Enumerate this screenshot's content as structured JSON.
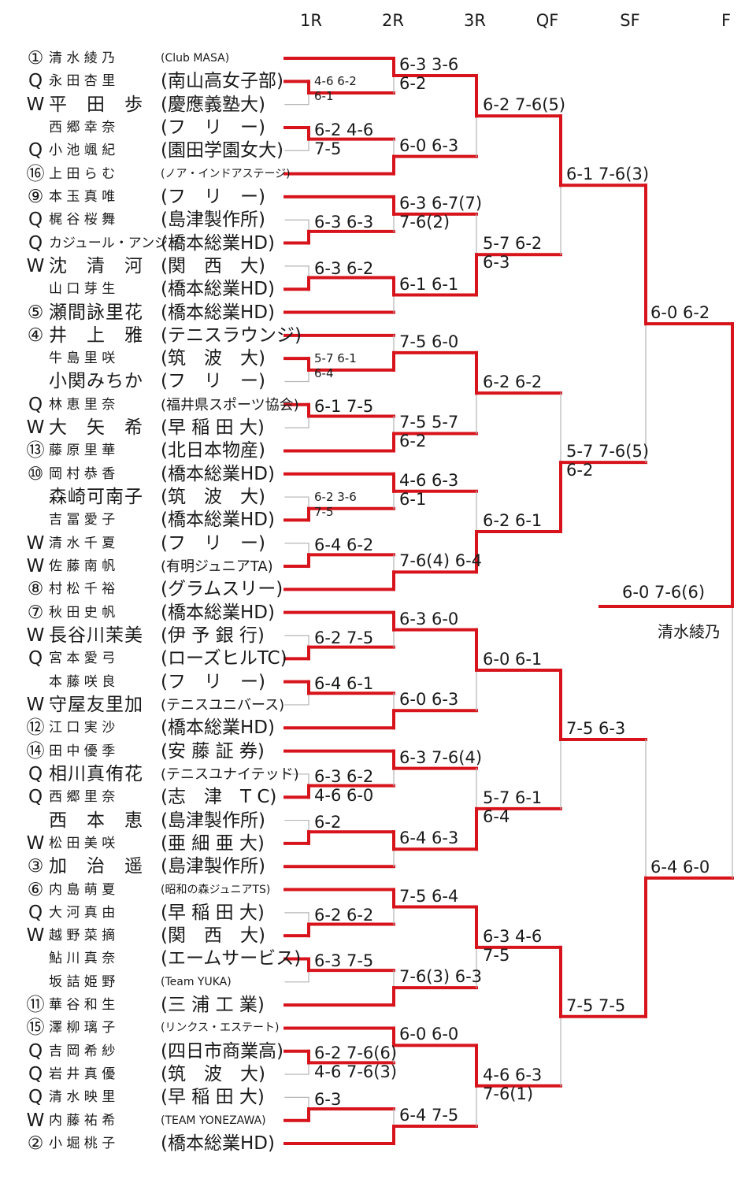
{
  "rounds": [
    "1R",
    "2R",
    "3R",
    "QF",
    "SF",
    "F"
  ],
  "colors": {
    "win": "#d7141c",
    "lose": "#b5b5b5",
    "text": "#1a1a1a"
  },
  "players": [
    {
      "seed": "①",
      "name": "清 水 綾 乃",
      "club": "(Club  MASA)"
    },
    {
      "seed": "Q",
      "name": "永 田 杏 里",
      "club": "(南山高女子部)"
    },
    {
      "seed": "W",
      "name": "平　田　歩",
      "club": "(慶應義塾大)"
    },
    {
      "seed": "",
      "name": "西 郷 幸 奈",
      "club": "(フ　リ　ー)"
    },
    {
      "seed": "Q",
      "name": "小 池 颯 紀",
      "club": "(園田学園女大)"
    },
    {
      "seed": "⑯",
      "name": "上 田 ら む",
      "club": "(ノア・インドアステージ)"
    },
    {
      "seed": "⑨",
      "name": "本 玉 真 唯",
      "club": "(フ　リ　ー)"
    },
    {
      "seed": "Q",
      "name": "梶 谷 桜 舞",
      "club": "(島津製作所)"
    },
    {
      "seed": "Q",
      "name": "カジュール・アンジュ",
      "club": "(橋本総業HD)"
    },
    {
      "seed": "W",
      "name": "沈　清　河",
      "club": "(関　西　大)"
    },
    {
      "seed": "",
      "name": "山 口 芽 生",
      "club": "(橋本総業HD)"
    },
    {
      "seed": "⑤",
      "name": "瀬間詠里花",
      "club": "(橋本総業HD)"
    },
    {
      "seed": "④",
      "name": "井　上　雅",
      "club": "(テニスラウンジ)"
    },
    {
      "seed": "",
      "name": "牛 島 里 咲",
      "club": "(筑　波　大)"
    },
    {
      "seed": "",
      "name": "小関みちか",
      "club": "(フ　リ　ー)"
    },
    {
      "seed": "Q",
      "name": "林 恵 里 奈",
      "club": "(福井県スポーツ協会)"
    },
    {
      "seed": "W",
      "name": "大　矢　希",
      "club": "(早 稲 田 大)"
    },
    {
      "seed": "⑬",
      "name": "藤 原 里 華",
      "club": "(北日本物産)"
    },
    {
      "seed": "⑩",
      "name": "岡 村 恭 香",
      "club": "(橋本総業HD)"
    },
    {
      "seed": "",
      "name": "森崎可南子",
      "club": "(筑　波　大)"
    },
    {
      "seed": "",
      "name": "吉 冨 愛 子",
      "club": "(橋本総業HD)"
    },
    {
      "seed": "W",
      "name": "清 水 千 夏",
      "club": "(フ　リ　ー)"
    },
    {
      "seed": "W",
      "name": "佐 藤 南 帆",
      "club": "(有明ジュニアTA)"
    },
    {
      "seed": "⑧",
      "name": "村 松 千 裕",
      "club": "(グラムスリー)"
    },
    {
      "seed": "⑦",
      "name": "秋 田 史 帆",
      "club": "(橋本総業HD)"
    },
    {
      "seed": "W",
      "name": "長谷川茉美",
      "club": "(伊 予 銀 行)"
    },
    {
      "seed": "Q",
      "name": "宮 本 愛 弓",
      "club": "(ローズヒルTC)"
    },
    {
      "seed": "",
      "name": "本 藤 咲 良",
      "club": "(フ　リ　ー)"
    },
    {
      "seed": "W",
      "name": "守屋友里加",
      "club": "(テニスユニバース)"
    },
    {
      "seed": "⑫",
      "name": "江 口 実 沙",
      "club": "(橋本総業HD)"
    },
    {
      "seed": "⑭",
      "name": "田 中 優 季",
      "club": "(安 藤 証 券)"
    },
    {
      "seed": "Q",
      "name": "相川真侑花",
      "club": "(テニスユナイテッド)"
    },
    {
      "seed": "Q",
      "name": "西 郷 里 奈",
      "club": "(志　津　T C)"
    },
    {
      "seed": "",
      "name": "西　本　恵",
      "club": "(島津製作所)"
    },
    {
      "seed": "W",
      "name": "松 田 美 咲",
      "club": "(亜 細 亜 大)"
    },
    {
      "seed": "③",
      "name": "加　治　遥",
      "club": "(島津製作所)"
    },
    {
      "seed": "⑥",
      "name": "内 島 萌 夏",
      "club": "(昭和の森ジュニアTS)"
    },
    {
      "seed": "Q",
      "name": "大 河 真 由",
      "club": "(早 稲 田 大)"
    },
    {
      "seed": "W",
      "name": "越 野 菜 摘",
      "club": "(関　西　大)"
    },
    {
      "seed": "",
      "name": "鮎 川 真 奈",
      "club": "(エームサービス)"
    },
    {
      "seed": "",
      "name": "坂 詰 姫 野",
      "club": "(Team  YUKA)"
    },
    {
      "seed": "⑪",
      "name": "華 谷 和 生",
      "club": "(三 浦 工 業)"
    },
    {
      "seed": "⑮",
      "name": "澤 柳 璃 子",
      "club": "(リンクス・エステート)"
    },
    {
      "seed": "Q",
      "name": "吉 岡 希 紗",
      "club": "(四日市商業高)"
    },
    {
      "seed": "Q",
      "name": "岩 井 真 優",
      "club": "(筑　波　大)"
    },
    {
      "seed": "Q",
      "name": "清 水 映 里",
      "club": "(早 稲 田 大)"
    },
    {
      "seed": "W",
      "name": "内 藤 祐 希",
      "club": "(TEAM YONEZAWA)"
    },
    {
      "seed": "②",
      "name": "小 堀 桃 子",
      "club": "(橋本総業HD)"
    }
  ],
  "r1": [
    {
      "a": 1,
      "b": 2,
      "w": 1,
      "score": [
        "4-6 6-2",
        "6-1"
      ],
      "small": true
    },
    {
      "a": 3,
      "b": 4,
      "w": 3,
      "score": [
        "6-2 4-6",
        "7-5"
      ]
    },
    {
      "a": 7,
      "b": 8,
      "w": 8,
      "score": [
        "6-3 6-3"
      ]
    },
    {
      "a": 9,
      "b": 10,
      "w": 10,
      "score": [
        "6-3 6-2"
      ]
    },
    {
      "a": 13,
      "b": 14,
      "w": 13,
      "score": [
        "5-7 6-1",
        "6-4"
      ],
      "small": true
    },
    {
      "a": 15,
      "b": 16,
      "w": 15,
      "score": [
        "6-1 7-5"
      ]
    },
    {
      "a": 19,
      "b": 20,
      "w": 20,
      "score": [
        "6-2 3-6",
        "7-5"
      ],
      "small": true
    },
    {
      "a": 21,
      "b": 22,
      "w": 22,
      "score": [
        "6-4 6-2"
      ]
    },
    {
      "a": 25,
      "b": 26,
      "w": 26,
      "score": [
        "6-2 7-5"
      ]
    },
    {
      "a": 27,
      "b": 28,
      "w": 27,
      "score": [
        "6-4 6-1"
      ]
    },
    {
      "a": 31,
      "b": 32,
      "w": 32,
      "score": [
        "6-3 6-2",
        "4-6 6-0"
      ]
    },
    {
      "a": 33,
      "b": 34,
      "w": 34,
      "score": [
        "6-2"
      ]
    },
    {
      "a": 37,
      "b": 38,
      "w": 38,
      "score": [
        "6-2 6-2"
      ]
    },
    {
      "a": 39,
      "b": 40,
      "w": 39,
      "score": [
        "6-3 7-5"
      ]
    },
    {
      "a": 43,
      "b": 44,
      "w": 43,
      "score": [
        "6-2 7-6(6)",
        "4-6 7-6(3)"
      ]
    },
    {
      "a": 45,
      "b": 46,
      "w": 46,
      "score": [
        "6-3"
      ]
    }
  ],
  "r2": [
    {
      "a": 0,
      "b": 1,
      "w": 0,
      "score": [
        "6-3 3-6",
        "6-2"
      ]
    },
    {
      "a": 3,
      "b": 5,
      "w": 5,
      "score": [
        "6-0 6-3"
      ]
    },
    {
      "a": 6,
      "b": 8,
      "w": 6,
      "score": [
        "6-3 6-7(7)",
        "7-6(2)"
      ]
    },
    {
      "a": 10,
      "b": 11,
      "w": 10,
      "score": [
        "6-1 6-1"
      ]
    },
    {
      "a": 12,
      "b": 13,
      "w": 13,
      "score": [
        "7-5 6-0"
      ]
    },
    {
      "a": 15,
      "b": 17,
      "w": 17,
      "score": [
        "7-5 5-7",
        "6-2"
      ]
    },
    {
      "a": 18,
      "b": 20,
      "w": 18,
      "score": [
        "4-6 6-3",
        "6-1"
      ]
    },
    {
      "a": 22,
      "b": 23,
      "w": 23,
      "score": [
        "7-6(4) 6-4"
      ]
    },
    {
      "a": 24,
      "b": 26,
      "w": 24,
      "score": [
        "6-3 6-0"
      ]
    },
    {
      "a": 27,
      "b": 29,
      "w": 29,
      "score": [
        "6-0 6-3"
      ]
    },
    {
      "a": 30,
      "b": 32,
      "w": 30,
      "score": [
        "6-3 7-6(4)"
      ]
    },
    {
      "a": 34,
      "b": 35,
      "w": 34,
      "score": [
        "6-4 6-3"
      ]
    },
    {
      "a": 36,
      "b": 38,
      "w": 36,
      "score": [
        "7-5 6-4"
      ]
    },
    {
      "a": 39,
      "b": 41,
      "w": 41,
      "score": [
        "7-6(3) 6-3"
      ]
    },
    {
      "a": 42,
      "b": 43,
      "w": 42,
      "score": [
        "6-0 6-0"
      ]
    },
    {
      "a": 46,
      "b": 47,
      "w": 47,
      "score": [
        "6-4 7-5"
      ]
    }
  ],
  "r3": [
    {
      "a": 0,
      "b": 5,
      "w": 0,
      "score": [
        "6-2 7-6(5)"
      ]
    },
    {
      "a": 6,
      "b": 10,
      "w": 10,
      "score": [
        "5-7 6-2",
        "6-3"
      ]
    },
    {
      "a": 13,
      "b": 17,
      "w": 13,
      "score": [
        "6-2 6-2"
      ]
    },
    {
      "a": 18,
      "b": 23,
      "w": 23,
      "score": [
        "6-2 6-1"
      ]
    },
    {
      "a": 24,
      "b": 29,
      "w": 24,
      "score": [
        "6-0 6-1"
      ]
    },
    {
      "a": 30,
      "b": 34,
      "w": 34,
      "score": [
        "5-7 6-1",
        "6-4"
      ]
    },
    {
      "a": 36,
      "b": 41,
      "w": 36,
      "score": [
        "6-3 4-6",
        "7-5"
      ]
    },
    {
      "a": 42,
      "b": 47,
      "w": 42,
      "score": [
        "4-6 6-3",
        "7-6(1)"
      ]
    }
  ],
  "qf": [
    {
      "a": 0,
      "b": 10,
      "w": 0,
      "score": [
        "6-1 7-6(3)"
      ]
    },
    {
      "a": 13,
      "b": 23,
      "w": 23,
      "score": [
        "5-7 7-6(5)",
        "6-2"
      ]
    },
    {
      "a": 24,
      "b": 34,
      "w": 24,
      "score": [
        "7-5 6-3"
      ]
    },
    {
      "a": 36,
      "b": 42,
      "w": 36,
      "score": [
        "7-5 7-5"
      ]
    }
  ],
  "sf": [
    {
      "a": 0,
      "b": 23,
      "w": 0,
      "score": [
        "6-0 6-2"
      ]
    },
    {
      "a": 24,
      "b": 36,
      "w": 36,
      "score": [
        "6-4 6-0"
      ]
    }
  ],
  "final": {
    "score": "6-0 7-6(6)",
    "winner": "清水綾乃"
  }
}
